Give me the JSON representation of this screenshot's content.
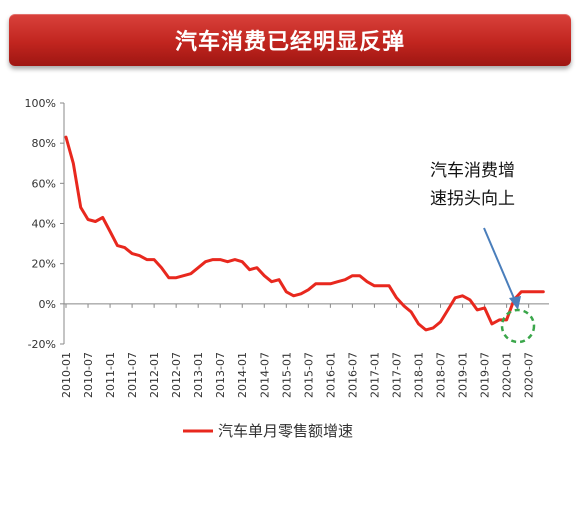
{
  "header": {
    "title": "汽车消费已经明显反弹"
  },
  "chart_data": {
    "type": "line",
    "title": "汽车消费已经明显反弹",
    "xlabel": "",
    "ylabel": "",
    "ylim": [
      -20,
      100
    ],
    "y_ticks": [
      "100%",
      "80%",
      "60%",
      "40%",
      "20%",
      "0%",
      "-20%"
    ],
    "y_tick_values": [
      100,
      80,
      60,
      40,
      20,
      0,
      -20
    ],
    "x_ticks": [
      "2010-01",
      "2010-07",
      "2011-01",
      "2011-07",
      "2012-01",
      "2012-07",
      "2013-01",
      "2013-07",
      "2014-01",
      "2014-07",
      "2015-01",
      "2015-07",
      "2016-01",
      "2016-07",
      "2017-01",
      "2017-07",
      "2018-01",
      "2018-07",
      "2019-01",
      "2019-07",
      "2020-01",
      "2020-07"
    ],
    "legend_position": "bottom",
    "series": [
      {
        "name": "汽车单月零售额增速",
        "color": "#e8281e",
        "x": [
          "2010-01",
          "2010-03",
          "2010-05",
          "2010-07",
          "2010-09",
          "2010-11",
          "2011-01",
          "2011-03",
          "2011-05",
          "2011-07",
          "2011-09",
          "2011-11",
          "2012-01",
          "2012-03",
          "2012-05",
          "2012-07",
          "2012-09",
          "2012-11",
          "2013-01",
          "2013-03",
          "2013-05",
          "2013-07",
          "2013-09",
          "2013-11",
          "2014-01",
          "2014-03",
          "2014-05",
          "2014-07",
          "2014-09",
          "2014-11",
          "2015-01",
          "2015-03",
          "2015-05",
          "2015-07",
          "2015-09",
          "2015-11",
          "2016-01",
          "2016-03",
          "2016-05",
          "2016-07",
          "2016-09",
          "2016-11",
          "2017-01",
          "2017-03",
          "2017-05",
          "2017-07",
          "2017-09",
          "2017-11",
          "2018-01",
          "2018-03",
          "2018-05",
          "2018-07",
          "2018-09",
          "2018-11",
          "2019-01",
          "2019-03",
          "2019-05",
          "2019-07",
          "2019-09",
          "2019-11",
          "2020-01",
          "2020-03",
          "2020-05",
          "2020-07",
          "2020-09",
          "2020-11"
        ],
        "values": [
          83,
          70,
          48,
          42,
          41,
          43,
          36,
          29,
          28,
          25,
          24,
          22,
          22,
          18,
          13,
          13,
          14,
          15,
          18,
          21,
          22,
          22,
          21,
          22,
          21,
          17,
          18,
          14,
          11,
          12,
          6,
          4,
          5,
          7,
          10,
          10,
          10,
          11,
          12,
          14,
          14,
          11,
          9,
          9,
          9,
          3,
          -1,
          -4,
          -10,
          -13,
          -12,
          -9,
          -3,
          3,
          4,
          2,
          -3,
          -2,
          -10,
          -8,
          -8,
          2,
          6,
          6,
          6,
          6
        ]
      }
    ],
    "annotations": [
      {
        "text_line1": "汽车消费增",
        "text_line2": "速拐头向上"
      }
    ]
  }
}
